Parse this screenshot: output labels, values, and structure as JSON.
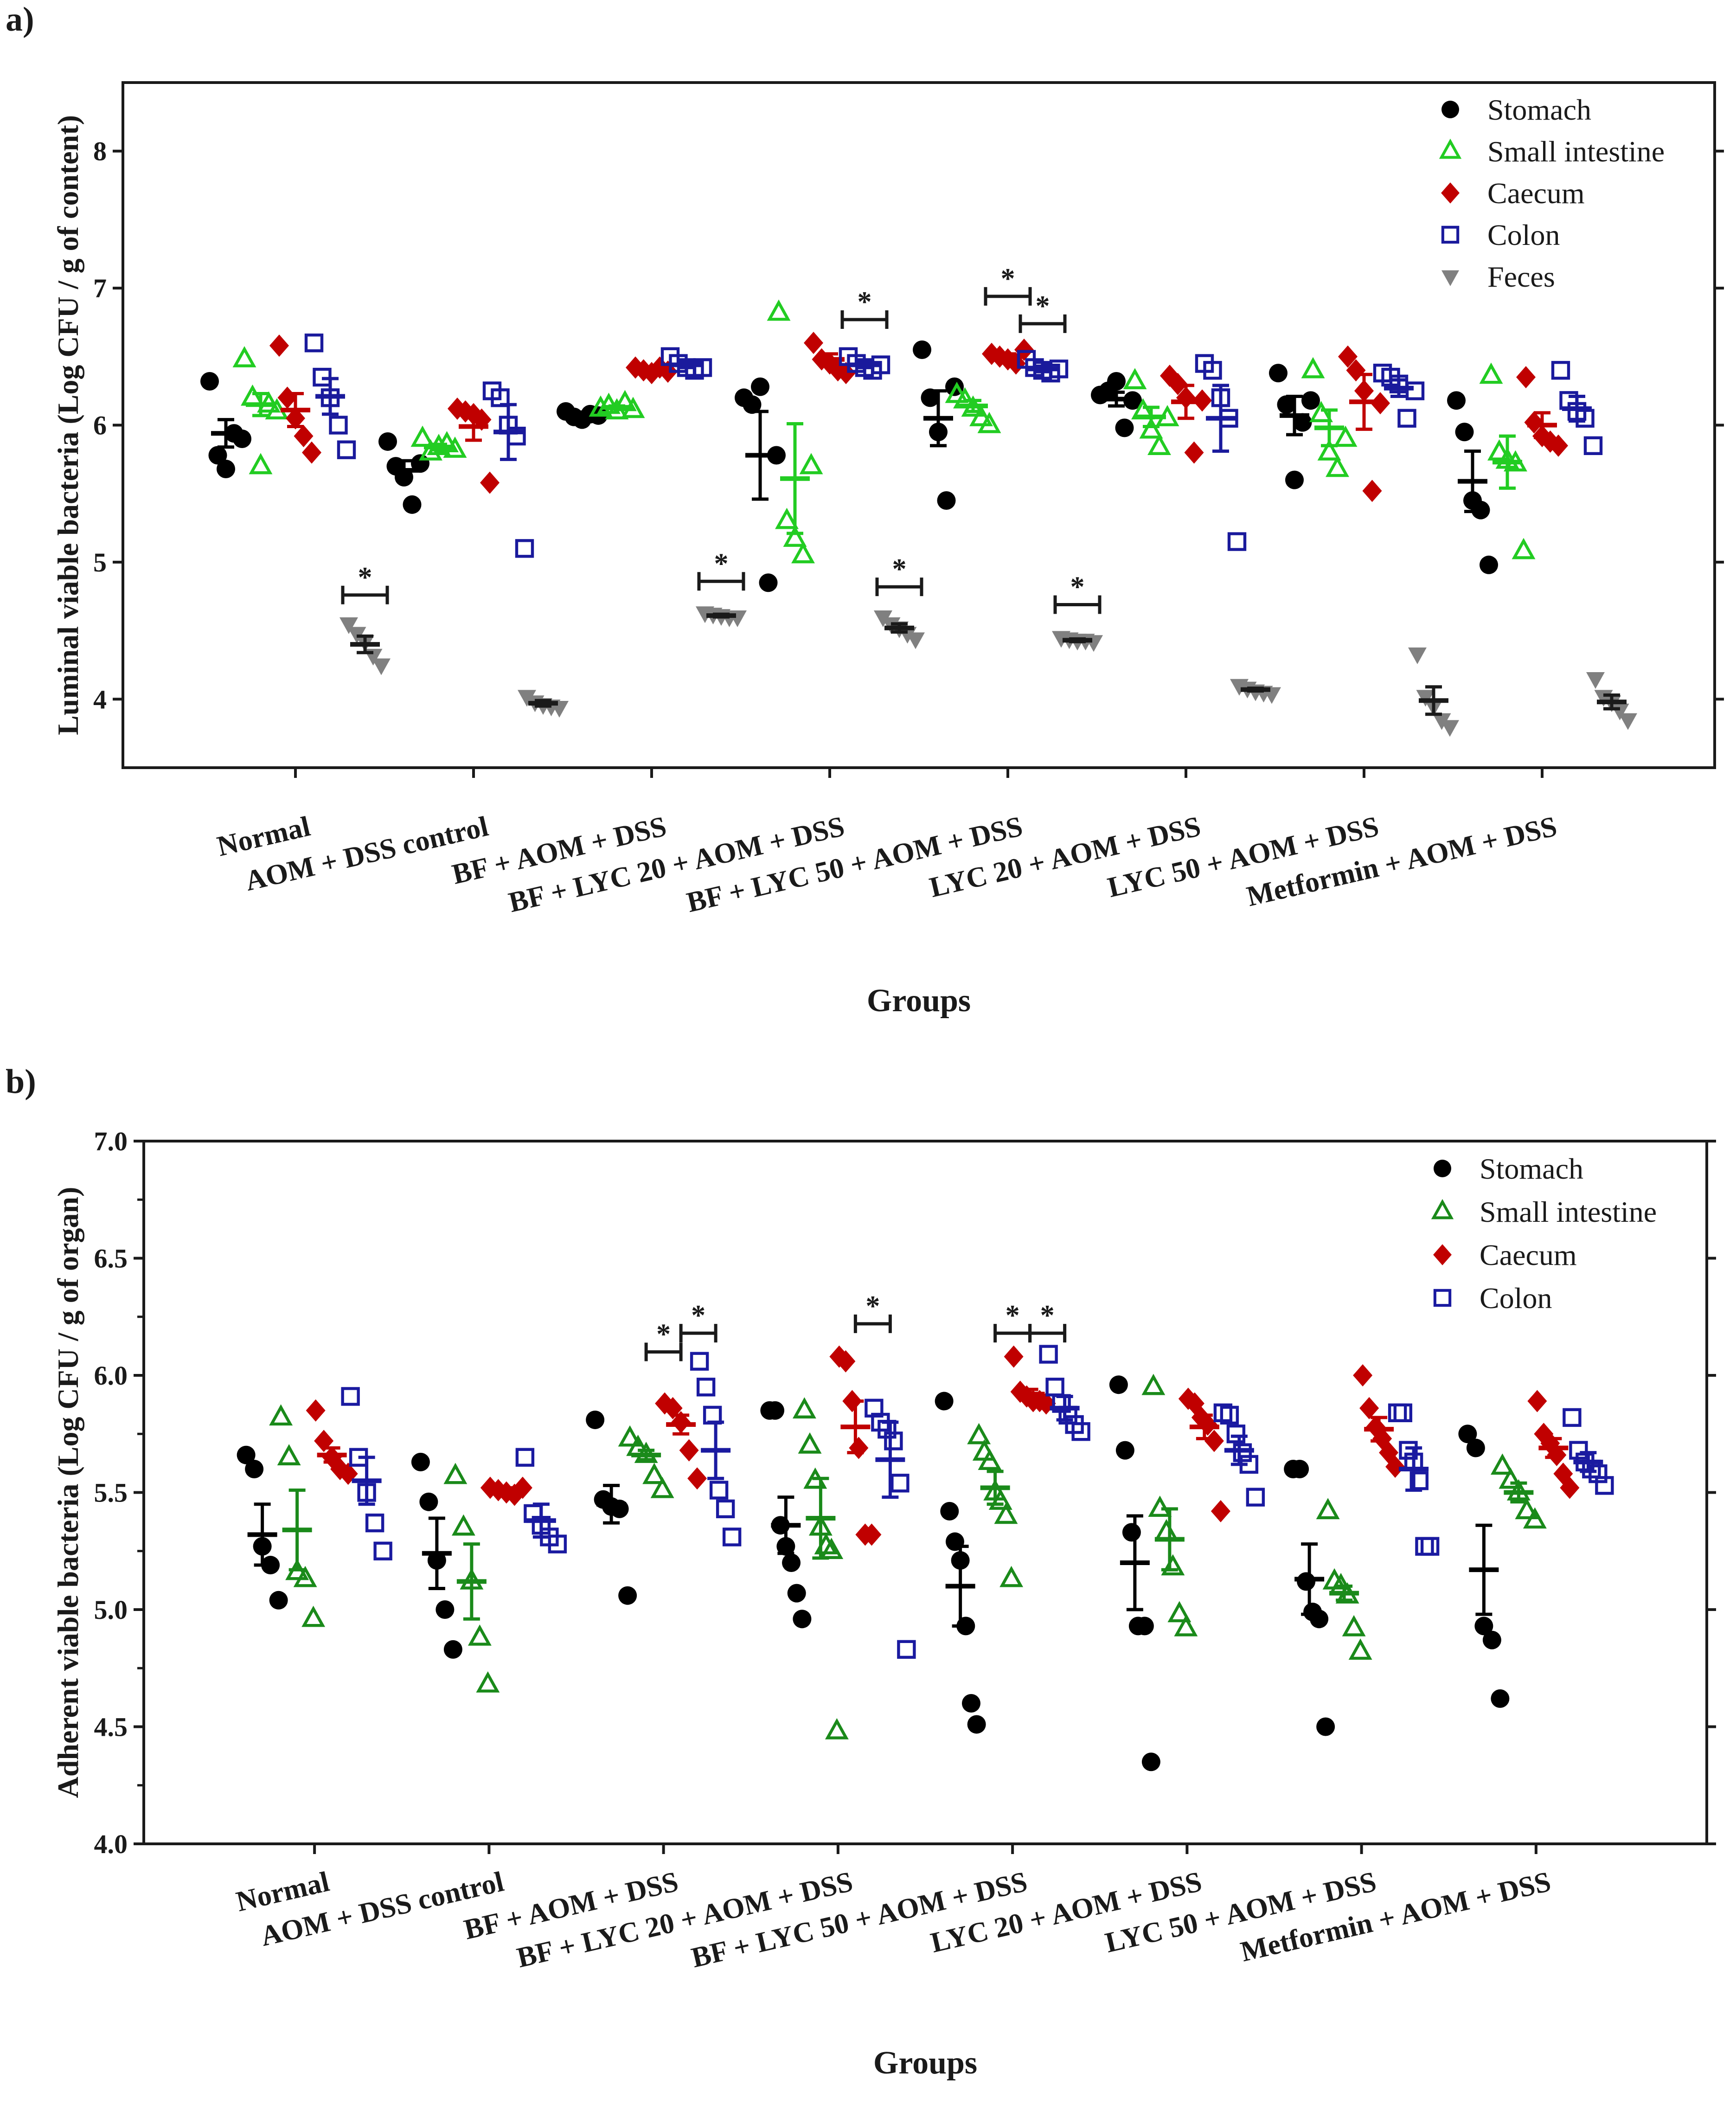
{
  "chart_data": [
    {
      "type": "scatter",
      "panel_label": "a)",
      "ylabel": "Luminal viable bacteria (Log CFU / g of content)",
      "xlabel": "Groups",
      "ylim": [
        3.5,
        8.5
      ],
      "yticks": [
        "4",
        "5",
        "6",
        "7",
        "8"
      ],
      "categories": [
        "Normal",
        "AOM + DSS control",
        "BF + AOM + DSS",
        "BF + LYC 20 + AOM + DSS",
        "BF + LYC 50 + AOM + DSS",
        "LYC 20 + AOM + DSS",
        "LYC 50 + AOM + DSS",
        "Metformin + AOM + DSS"
      ],
      "legend_position": "top-right",
      "significance_marker": "*",
      "series": [
        {
          "name": "Stomach",
          "color": "#000000",
          "marker": "circle",
          "points": [
            [
              6.32,
              5.78,
              5.68,
              5.94,
              5.9
            ],
            [
              5.88,
              5.7,
              5.62,
              5.42,
              5.72
            ],
            [
              6.1,
              6.06,
              6.04,
              6.08,
              6.07
            ],
            [
              6.2,
              6.15,
              6.28,
              4.85,
              5.78
            ],
            [
              6.55,
              6.2,
              5.95,
              5.45,
              6.28
            ],
            [
              6.22,
              6.25,
              6.32,
              5.98,
              6.18
            ],
            [
              6.38,
              6.15,
              5.6,
              6.02,
              6.18
            ],
            [
              6.18,
              5.95,
              5.45,
              5.38,
              4.98
            ]
          ],
          "mean": [
            5.94,
            5.67,
            6.07,
            5.78,
            6.05,
            6.19,
            6.07,
            5.59
          ],
          "sem": [
            0.1,
            0.07,
            0.01,
            0.32,
            0.2,
            0.05,
            0.14,
            0.22
          ]
        },
        {
          "name": "Small intestine",
          "color": "#22cc22",
          "marker": "triangle-open",
          "points": [
            [
              6.48,
              6.2,
              5.7,
              6.15,
              6.1
            ],
            [
              5.9,
              5.8,
              5.84,
              5.86,
              5.82
            ],
            [
              6.12,
              6.14,
              6.1,
              6.16,
              6.11
            ],
            [
              6.82,
              5.3,
              5.17,
              5.05,
              5.7
            ],
            [
              6.22,
              6.18,
              6.12,
              6.05,
              6.0
            ],
            [
              6.32,
              6.1,
              5.96,
              5.84,
              6.05
            ],
            [
              6.4,
              6.08,
              5.8,
              5.68,
              5.9
            ],
            [
              6.36,
              5.8,
              5.74,
              5.72,
              5.08
            ]
          ],
          "mean": [
            6.15,
            5.84,
            6.13,
            5.61,
            6.14,
            6.06,
            5.98,
            5.73
          ],
          "sem": [
            0.08,
            0.02,
            0.01,
            0.4,
            0.04,
            0.07,
            0.13,
            0.19
          ]
        },
        {
          "name": "Caecum",
          "color": "#c00000",
          "marker": "diamond",
          "points": [
            [
              6.58,
              6.2,
              6.05,
              5.92,
              5.8
            ],
            [
              6.12,
              6.1,
              6.08,
              6.04,
              5.58
            ],
            [
              6.42,
              6.4,
              6.38,
              6.42,
              6.39
            ],
            [
              6.6,
              6.48,
              6.45,
              6.4,
              6.38
            ],
            [
              6.52,
              6.5,
              6.48,
              6.45,
              6.55
            ],
            [
              6.36,
              6.3,
              6.2,
              5.8,
              6.18
            ],
            [
              6.5,
              6.4,
              6.25,
              5.52,
              6.16
            ],
            [
              6.35,
              6.02,
              5.92,
              5.88,
              5.85
            ]
          ],
          "mean": [
            6.11,
            5.99,
            6.4,
            6.48,
            6.5,
            6.17,
            6.17,
            6.0
          ],
          "sem": [
            0.12,
            0.1,
            0.01,
            0.04,
            0.02,
            0.12,
            0.2,
            0.09
          ]
        },
        {
          "name": "Colon",
          "color": "#1a1a9c",
          "marker": "square-open",
          "points": [
            [
              6.6,
              6.35,
              6.2,
              6.0,
              5.82
            ],
            [
              6.25,
              6.2,
              6.0,
              5.92,
              5.1
            ],
            [
              6.5,
              6.45,
              6.42,
              6.4,
              6.42
            ],
            [
              6.5,
              6.45,
              6.42,
              6.4,
              6.44
            ],
            [
              6.48,
              6.42,
              6.4,
              6.38,
              6.41
            ],
            [
              6.45,
              6.4,
              6.2,
              6.05,
              5.15
            ],
            [
              6.38,
              6.35,
              6.3,
              6.05,
              6.25
            ],
            [
              6.4,
              6.18,
              6.1,
              6.05,
              5.85
            ]
          ],
          "mean": [
            6.21,
            5.95,
            6.44,
            6.44,
            6.41,
            6.05,
            6.27,
            6.12
          ],
          "sem": [
            0.13,
            0.2,
            0.02,
            0.02,
            0.02,
            0.24,
            0.06,
            0.09
          ]
        },
        {
          "name": "Feces",
          "color": "#808080",
          "marker": "triangle-down",
          "points": [
            [
              4.55,
              4.48,
              4.42,
              4.32,
              4.25
            ],
            [
              4.02,
              3.98,
              3.96,
              3.95,
              3.94
            ],
            [
              4.63,
              4.62,
              4.61,
              4.6,
              4.6
            ],
            [
              4.6,
              4.55,
              4.52,
              4.48,
              4.44
            ],
            [
              4.45,
              4.44,
              4.43,
              4.43,
              4.42
            ],
            [
              4.1,
              4.08,
              4.06,
              4.05,
              4.04
            ],
            [
              4.33,
              4.02,
              3.95,
              3.85,
              3.8
            ],
            [
              4.15,
              4.02,
              3.98,
              3.92,
              3.85
            ]
          ],
          "mean": [
            4.4,
            3.97,
            4.61,
            4.52,
            4.43,
            4.07,
            3.99,
            3.98
          ],
          "sem": [
            0.06,
            0.02,
            0.01,
            0.03,
            0.01,
            0.01,
            0.1,
            0.05
          ]
        }
      ],
      "significance": [
        {
          "group": 0,
          "from": "Feces",
          "at": 4.76
        },
        {
          "group": 2,
          "from": "Feces",
          "at": 4.86
        },
        {
          "group": 3,
          "from": "Feces",
          "at": 4.82
        },
        {
          "group": 3,
          "from": "Colon",
          "at": 6.77
        },
        {
          "group": 4,
          "from": "Caecum",
          "at": 6.94
        },
        {
          "group": 4,
          "from": "Colon",
          "at": 6.74
        },
        {
          "group": 4,
          "from": "Feces",
          "at": 4.69
        }
      ]
    },
    {
      "type": "scatter",
      "panel_label": "b)",
      "ylabel": "Adherent viable bacteria (Log CFU / g of organ)",
      "xlabel": "Groups",
      "ylim": [
        4.0,
        7.0
      ],
      "yticks": [
        "4.0",
        "4.5",
        "5.0",
        "5.5",
        "6.0",
        "6.5",
        "7.0"
      ],
      "categories": [
        "Normal",
        "AOM + DSS control",
        "BF + AOM + DSS",
        "BF + LYC 20 + AOM + DSS",
        "BF + LYC 50 + AOM + DSS",
        "LYC 20 + AOM + DSS",
        "LYC 50 + AOM + DSS",
        "Metformin + AOM + DSS"
      ],
      "legend_position": "top-right",
      "significance_marker": "*",
      "series": [
        {
          "name": "Stomach",
          "color": "#000000",
          "marker": "circle",
          "points": [
            [
              5.66,
              5.6,
              5.27,
              5.19,
              5.04
            ],
            [
              5.63,
              5.46,
              5.21,
              5.0,
              4.83
            ],
            [
              5.81,
              5.47,
              5.44,
              5.43,
              5.06
            ],
            [
              5.85,
              5.85,
              5.36,
              5.27,
              5.2,
              5.07,
              4.96
            ],
            [
              5.89,
              5.42,
              5.29,
              5.21,
              4.93,
              4.6,
              4.51
            ],
            [
              5.96,
              5.68,
              5.33,
              4.93,
              4.93,
              4.35
            ],
            [
              5.6,
              5.6,
              5.12,
              4.99,
              4.96,
              4.5
            ],
            [
              5.75,
              5.69,
              4.93,
              4.87,
              4.62
            ]
          ],
          "mean": [
            5.32,
            5.24,
            5.45,
            5.36,
            5.1,
            5.2,
            5.13,
            5.17
          ],
          "sem": [
            0.13,
            0.15,
            0.08,
            0.12,
            0.17,
            0.2,
            0.15,
            0.19
          ]
        },
        {
          "name": "Small intestine",
          "color": "#1a8a1a",
          "marker": "triangle-open",
          "points": [
            [
              5.82,
              5.65,
              5.16,
              5.13,
              4.96
            ],
            [
              5.57,
              5.35,
              5.12,
              4.88,
              4.68
            ],
            [
              5.73,
              5.69,
              5.66,
              5.57,
              5.51
            ],
            [
              5.85,
              5.7,
              5.55,
              5.35,
              5.27,
              5.25,
              4.48
            ],
            [
              5.74,
              5.67,
              5.63,
              5.5,
              5.46,
              5.4,
              5.13
            ],
            [
              5.95,
              5.43,
              5.33,
              5.18,
              4.98,
              4.92
            ],
            [
              5.42,
              5.12,
              5.1,
              5.06,
              4.92,
              4.82
            ],
            [
              5.61,
              5.55,
              5.5,
              5.42,
              5.38
            ]
          ],
          "mean": [
            5.34,
            5.12,
            5.66,
            5.39,
            5.52,
            5.3,
            5.07,
            5.5
          ],
          "sem": [
            0.17,
            0.16,
            0.02,
            0.17,
            0.07,
            0.13,
            0.03,
            0.04
          ]
        },
        {
          "name": "Caecum",
          "color": "#c00000",
          "marker": "diamond",
          "points": [
            [
              5.85,
              5.72,
              5.65,
              5.6,
              5.58
            ],
            [
              5.52,
              5.51,
              5.5,
              5.49,
              5.52
            ],
            [
              5.88,
              5.86,
              5.8,
              5.68,
              5.56
            ],
            [
              6.08,
              6.06,
              5.89,
              5.69,
              5.32,
              5.32
            ],
            [
              6.08,
              5.93,
              5.91,
              5.89,
              5.89,
              5.88
            ],
            [
              5.9,
              5.88,
              5.82,
              5.79,
              5.72,
              5.42
            ],
            [
              6.0,
              5.86,
              5.78,
              5.73,
              5.67,
              5.61
            ],
            [
              5.89,
              5.75,
              5.71,
              5.66,
              5.58,
              5.52
            ]
          ],
          "mean": [
            5.66,
            5.51,
            5.79,
            5.78,
            5.92,
            5.78,
            5.77,
            5.69
          ],
          "sem": [
            0.03,
            0.01,
            0.04,
            0.11,
            0.02,
            0.05,
            0.05,
            0.04
          ]
        },
        {
          "name": "Colon",
          "color": "#1a1aa0",
          "marker": "square-open",
          "points": [
            [
              5.91,
              5.65,
              5.5,
              5.37,
              5.25
            ],
            [
              5.65,
              5.41,
              5.36,
              5.31,
              5.28
            ],
            [
              6.06,
              5.95,
              5.83,
              5.51,
              5.43,
              5.31
            ],
            [
              5.86,
              5.8,
              5.77,
              5.72,
              5.54,
              4.83
            ],
            [
              6.09,
              5.95,
              5.88,
              5.83,
              5.79,
              5.76
            ],
            [
              5.84,
              5.83,
              5.75,
              5.67,
              5.62,
              5.48
            ],
            [
              5.84,
              5.84,
              5.68,
              5.63,
              5.55,
              5.27,
              5.27
            ],
            [
              5.82,
              5.68,
              5.63,
              5.6,
              5.58,
              5.53
            ]
          ],
          "mean": [
            5.55,
            5.38,
            5.68,
            5.64,
            5.86,
            5.68,
            5.6,
            5.63
          ],
          "sem": [
            0.1,
            0.07,
            0.12,
            0.16,
            0.05,
            0.06,
            0.09,
            0.04
          ]
        }
      ],
      "significance": [
        {
          "group": 2,
          "from": "Caecum",
          "to": "Small intestine",
          "at": 6.1
        },
        {
          "group": 2,
          "from": "Colon",
          "to": "Caecum",
          "at": 6.18
        },
        {
          "group": 3,
          "from": "Caecum",
          "to": "Colon",
          "at": 6.22
        },
        {
          "group": 4,
          "from": "Caecum",
          "to": "Small intestine",
          "at": 6.18
        },
        {
          "group": 4,
          "from": "Colon",
          "to": "Caecum",
          "at": 6.18
        }
      ]
    }
  ]
}
